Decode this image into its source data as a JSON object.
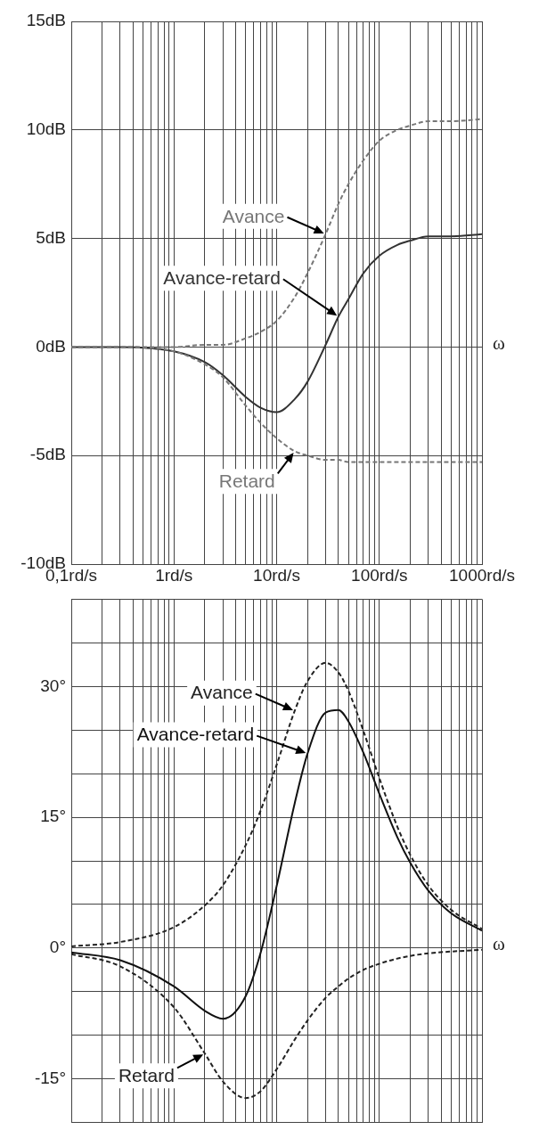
{
  "chart_data": [
    {
      "type": "line",
      "xlabel": "ω",
      "log": "x",
      "grid": true,
      "x": [
        0.1,
        0.3,
        1,
        2,
        3,
        5,
        7,
        10,
        15,
        20,
        30,
        40,
        50,
        70,
        100,
        150,
        200,
        300,
        500,
        1000
      ],
      "series": [
        {
          "name": "Avance",
          "color": "#777777",
          "line_style": "dashed",
          "values": [
            0,
            0,
            0,
            0.1,
            0.1,
            0.4,
            0.7,
            1.2,
            2.3,
            3.4,
            5.2,
            6.6,
            7.5,
            8.6,
            9.5,
            10,
            10.2,
            10.4,
            10.4,
            10.5
          ]
        },
        {
          "name": "Retard",
          "color": "#777777",
          "line_style": "dashed",
          "values": [
            0,
            0,
            -0.2,
            -0.8,
            -1.4,
            -2.7,
            -3.5,
            -4.2,
            -4.8,
            -5,
            -5.2,
            -5.2,
            -5.3,
            -5.3,
            -5.3,
            -5.3,
            -5.3,
            -5.3,
            -5.3,
            -5.3
          ]
        },
        {
          "name": "Avance-retard",
          "color": "#333333",
          "line_style": "solid",
          "values": [
            0,
            0,
            -0.2,
            -0.7,
            -1.3,
            -2.3,
            -2.8,
            -3,
            -2.4,
            -1.6,
            0.1,
            1.4,
            2.2,
            3.4,
            4.2,
            4.7,
            4.9,
            5.1,
            5.1,
            5.2
          ]
        }
      ],
      "xlim": [
        0.1,
        1000
      ],
      "xticks": [
        {
          "value": 0.1,
          "label": "0,1rd/s"
        },
        {
          "value": 0.2,
          "label": null
        },
        {
          "value": 0.3,
          "label": null
        },
        {
          "value": 0.4,
          "label": null
        },
        {
          "value": 0.5,
          "label": null
        },
        {
          "value": 0.6,
          "label": null
        },
        {
          "value": 0.7,
          "label": null
        },
        {
          "value": 0.8,
          "label": null
        },
        {
          "value": 0.9,
          "label": null
        },
        {
          "value": 1,
          "label": "1rd/s"
        },
        {
          "value": 2,
          "label": null
        },
        {
          "value": 3,
          "label": null
        },
        {
          "value": 4,
          "label": null
        },
        {
          "value": 5,
          "label": null
        },
        {
          "value": 6,
          "label": null
        },
        {
          "value": 7,
          "label": null
        },
        {
          "value": 8,
          "label": null
        },
        {
          "value": 9,
          "label": null
        },
        {
          "value": 10,
          "label": "10rd/s"
        },
        {
          "value": 20,
          "label": null
        },
        {
          "value": 30,
          "label": null
        },
        {
          "value": 40,
          "label": null
        },
        {
          "value": 50,
          "label": null
        },
        {
          "value": 60,
          "label": null
        },
        {
          "value": 70,
          "label": null
        },
        {
          "value": 80,
          "label": null
        },
        {
          "value": 90,
          "label": null
        },
        {
          "value": 100,
          "label": "100rd/s"
        },
        {
          "value": 200,
          "label": null
        },
        {
          "value": 300,
          "label": null
        },
        {
          "value": 400,
          "label": null
        },
        {
          "value": 500,
          "label": null
        },
        {
          "value": 600,
          "label": null
        },
        {
          "value": 700,
          "label": null
        },
        {
          "value": 800,
          "label": null
        },
        {
          "value": 900,
          "label": null
        },
        {
          "value": 1000,
          "label": "1000rd/s"
        }
      ],
      "ylim": [
        -10,
        15
      ],
      "yticks": [
        {
          "value": -10,
          "label": "-10dB"
        },
        {
          "value": -5,
          "label": "-5dB"
        },
        {
          "value": 0,
          "label": "0dB"
        },
        {
          "value": 5,
          "label": "5dB"
        },
        {
          "value": 10,
          "label": "10dB"
        },
        {
          "value": 15,
          "label": "15dB"
        }
      ]
    },
    {
      "type": "line",
      "xlabel": "ω",
      "log": "x",
      "grid": true,
      "tick_labels": "y",
      "x": [
        0.1,
        0.3,
        1,
        2,
        3,
        5,
        7,
        10,
        15,
        20,
        30,
        40,
        50,
        70,
        100,
        150,
        200,
        300,
        500,
        1000
      ],
      "series": [
        {
          "name": "Avance",
          "color": "#222222",
          "line_style": "dashed",
          "values": [
            0.2,
            0.7,
            2.4,
            4.9,
            7.2,
            11.8,
            15.8,
            21,
            27.2,
            30.6,
            32.7,
            31.6,
            29.5,
            24.9,
            19.5,
            13.9,
            10.7,
            7.2,
            4.4,
            2.2
          ]
        },
        {
          "name": "Retard",
          "color": "#222222",
          "line_style": "dashed",
          "values": [
            -0.7,
            -2.1,
            -6.8,
            -12.1,
            -15.3,
            -17.2,
            -16.4,
            -13.9,
            -10.5,
            -8.3,
            -5.7,
            -4.4,
            -3.5,
            -2.5,
            -1.8,
            -1.2,
            -0.9,
            -0.6,
            -0.4,
            -0.2
          ]
        },
        {
          "name": "Avance-retard",
          "color": "#111111",
          "line_style": "solid",
          "values": [
            -0.5,
            -1.4,
            -4.4,
            -7.2,
            -8.1,
            -5.5,
            -0.5,
            7.1,
            16.6,
            22.3,
            27,
            27.3,
            26,
            22.4,
            17.7,
            12.7,
            9.8,
            6.6,
            4,
            2
          ]
        }
      ],
      "xlim": [
        0.1,
        1000
      ],
      "xticks": [
        {
          "value": 0.1,
          "label": null
        },
        {
          "value": 0.2,
          "label": null
        },
        {
          "value": 0.3,
          "label": null
        },
        {
          "value": 0.4,
          "label": null
        },
        {
          "value": 0.5,
          "label": null
        },
        {
          "value": 0.6,
          "label": null
        },
        {
          "value": 0.7,
          "label": null
        },
        {
          "value": 0.8,
          "label": null
        },
        {
          "value": 0.9,
          "label": null
        },
        {
          "value": 1,
          "label": null
        },
        {
          "value": 2,
          "label": null
        },
        {
          "value": 3,
          "label": null
        },
        {
          "value": 4,
          "label": null
        },
        {
          "value": 5,
          "label": null
        },
        {
          "value": 6,
          "label": null
        },
        {
          "value": 7,
          "label": null
        },
        {
          "value": 8,
          "label": null
        },
        {
          "value": 9,
          "label": null
        },
        {
          "value": 10,
          "label": null
        },
        {
          "value": 20,
          "label": null
        },
        {
          "value": 30,
          "label": null
        },
        {
          "value": 40,
          "label": null
        },
        {
          "value": 50,
          "label": null
        },
        {
          "value": 60,
          "label": null
        },
        {
          "value": 70,
          "label": null
        },
        {
          "value": 80,
          "label": null
        },
        {
          "value": 90,
          "label": null
        },
        {
          "value": 100,
          "label": null
        },
        {
          "value": 200,
          "label": null
        },
        {
          "value": 300,
          "label": null
        },
        {
          "value": 400,
          "label": null
        },
        {
          "value": 500,
          "label": null
        },
        {
          "value": 600,
          "label": null
        },
        {
          "value": 700,
          "label": null
        },
        {
          "value": 800,
          "label": null
        },
        {
          "value": 900,
          "label": null
        },
        {
          "value": 1000,
          "label": null
        }
      ],
      "ylim": [
        -20,
        40
      ],
      "yticks": [
        {
          "value": -15,
          "label": "-15°"
        },
        {
          "value": -10,
          "label": null
        },
        {
          "value": -5,
          "label": null
        },
        {
          "value": 0,
          "label": "0°"
        },
        {
          "value": 5,
          "label": null
        },
        {
          "value": 10,
          "label": null
        },
        {
          "value": 15,
          "label": "15°"
        },
        {
          "value": 20,
          "label": null
        },
        {
          "value": 25,
          "label": null
        },
        {
          "value": 30,
          "label": "30°"
        },
        {
          "value": 35,
          "label": null
        },
        {
          "value": 40,
          "label": null
        }
      ]
    }
  ]
}
